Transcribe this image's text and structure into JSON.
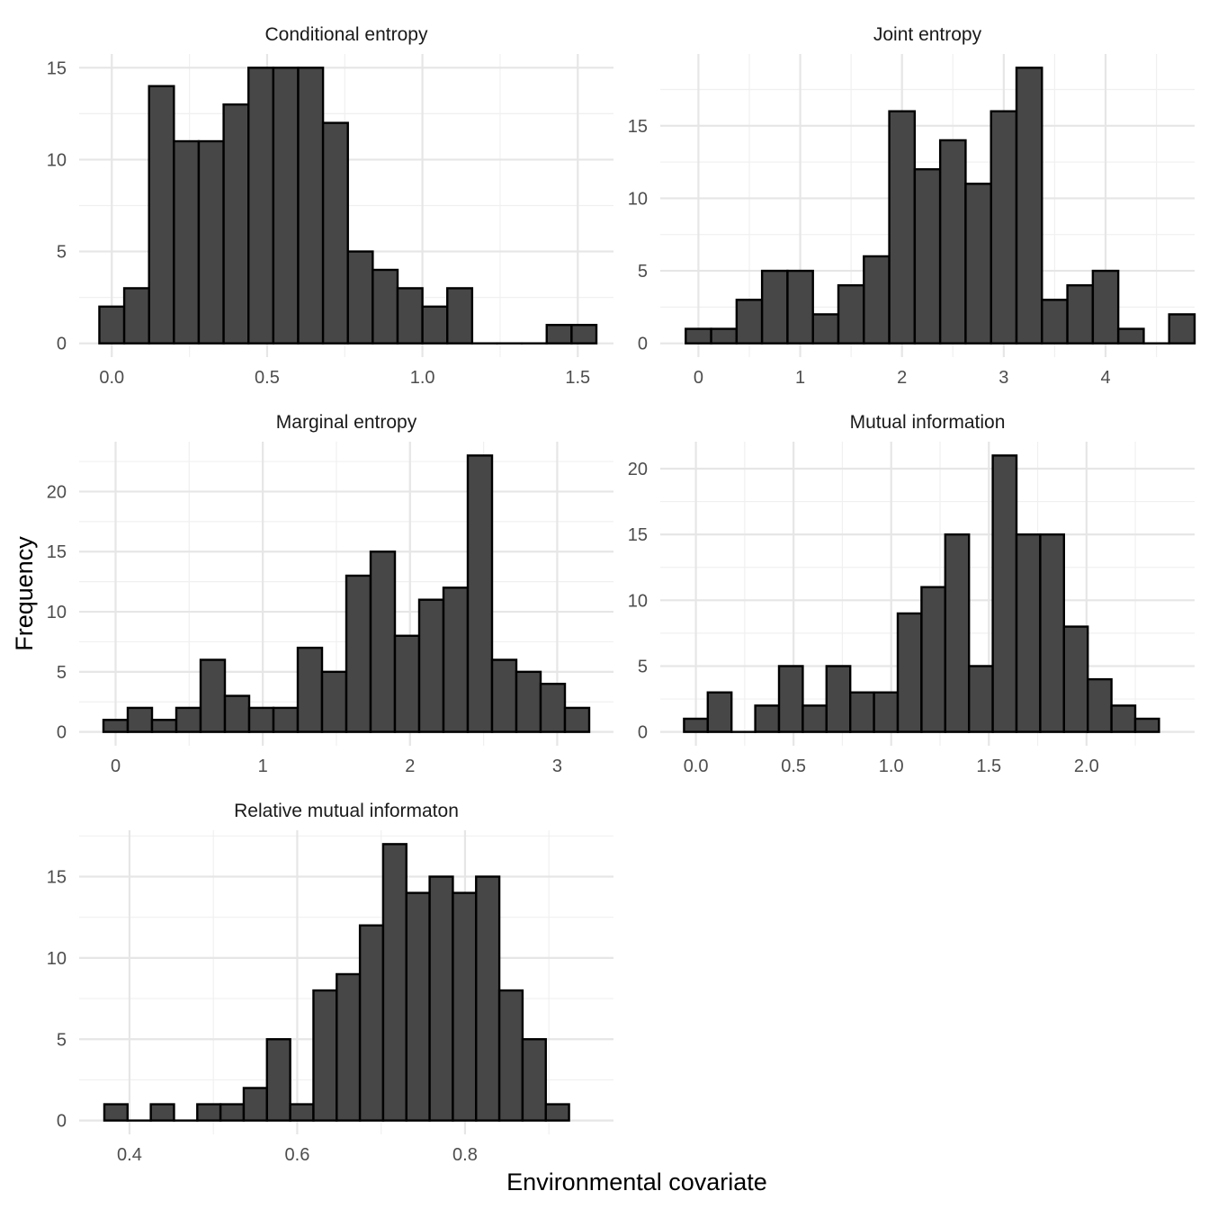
{
  "colors": {
    "bar_fill": "#474747",
    "bar_outline": "#000000",
    "grid": "#e6e6e6",
    "background": "#ffffff"
  },
  "figure": {
    "xlabel": "Environmental covariate",
    "ylabel": "Frequency"
  },
  "chart_data": [
    {
      "type": "bar",
      "title": "Conditional entropy",
      "bin_width": 0.08,
      "bin_start": -0.04,
      "values": [
        2,
        3,
        14,
        11,
        11,
        13,
        15,
        15,
        15,
        12,
        5,
        4,
        3,
        2,
        3,
        0,
        0,
        0,
        1,
        1
      ],
      "xlim": [
        -0.105,
        1.615
      ],
      "ylim": [
        -0.75,
        15.75
      ],
      "xticks": [
        0.0,
        0.5,
        1.0,
        1.5
      ],
      "xtick_labels": [
        "0.0",
        "0.5",
        "1.0",
        "1.5"
      ],
      "yticks": [
        0,
        5,
        10,
        15
      ],
      "ytick_labels": [
        "0",
        "5",
        "10",
        "15"
      ],
      "grid": true
    },
    {
      "type": "bar",
      "title": "Joint entropy",
      "bin_width": 0.25,
      "bin_start": -0.125,
      "values": [
        1,
        1,
        3,
        5,
        5,
        2,
        4,
        6,
        16,
        12,
        14,
        11,
        16,
        19,
        3,
        4,
        5,
        1,
        0,
        2
      ],
      "xlim": [
        -0.375,
        4.875
      ],
      "ylim": [
        -0.95,
        19.95
      ],
      "xticks": [
        0,
        1,
        2,
        3,
        4
      ],
      "xtick_labels": [
        "0",
        "1",
        "2",
        "3",
        "4"
      ],
      "yticks": [
        0,
        5,
        10,
        15
      ],
      "ytick_labels": [
        "0",
        "5",
        "10",
        "15"
      ],
      "grid": true
    },
    {
      "type": "bar",
      "title": "Marginal entropy",
      "bin_width": 0.165,
      "bin_start": -0.0825,
      "values": [
        1,
        2,
        1,
        2,
        6,
        3,
        2,
        2,
        7,
        5,
        13,
        15,
        8,
        11,
        12,
        23,
        6,
        5,
        4,
        2
      ],
      "xlim": [
        -0.2475,
        3.3825
      ],
      "ylim": [
        -1.15,
        24.15
      ],
      "xticks": [
        0,
        1,
        2,
        3
      ],
      "xtick_labels": [
        "0",
        "1",
        "2",
        "3"
      ],
      "yticks": [
        0,
        5,
        10,
        15,
        20
      ],
      "ytick_labels": [
        "0",
        "5",
        "10",
        "15",
        "20"
      ],
      "grid": true
    },
    {
      "type": "bar",
      "title": "Mutual information",
      "bin_width": 0.1216,
      "bin_start": -0.0608,
      "values": [
        1,
        3,
        0,
        2,
        5,
        2,
        5,
        3,
        3,
        9,
        11,
        15,
        5,
        21,
        15,
        15,
        8,
        4,
        2,
        1
      ],
      "xlim": [
        -0.1824,
        2.5536
      ],
      "ylim": [
        -1.05,
        22.05
      ],
      "xticks": [
        0.0,
        0.5,
        1.0,
        1.5,
        2.0
      ],
      "xtick_labels": [
        "0.0",
        "0.5",
        "1.0",
        "1.5",
        "2.0"
      ],
      "yticks": [
        0,
        5,
        10,
        15,
        20
      ],
      "ytick_labels": [
        "0",
        "5",
        "10",
        "15",
        "20"
      ],
      "grid": true
    },
    {
      "type": "bar",
      "title": "Relative mutual informaton",
      "bin_width": 0.0277,
      "bin_start": 0.37,
      "values": [
        1,
        0,
        1,
        0,
        1,
        1,
        2,
        5,
        1,
        8,
        9,
        12,
        17,
        14,
        15,
        14,
        15,
        8,
        5,
        1
      ],
      "xlim": [
        0.34,
        0.977
      ],
      "ylim": [
        -0.85,
        17.85
      ],
      "xticks": [
        0.4,
        0.6,
        0.8
      ],
      "xtick_labels": [
        "0.4",
        "0.6",
        "0.8"
      ],
      "yticks": [
        0,
        5,
        10,
        15
      ],
      "ytick_labels": [
        "0",
        "5",
        "10",
        "15"
      ],
      "grid": true
    }
  ]
}
